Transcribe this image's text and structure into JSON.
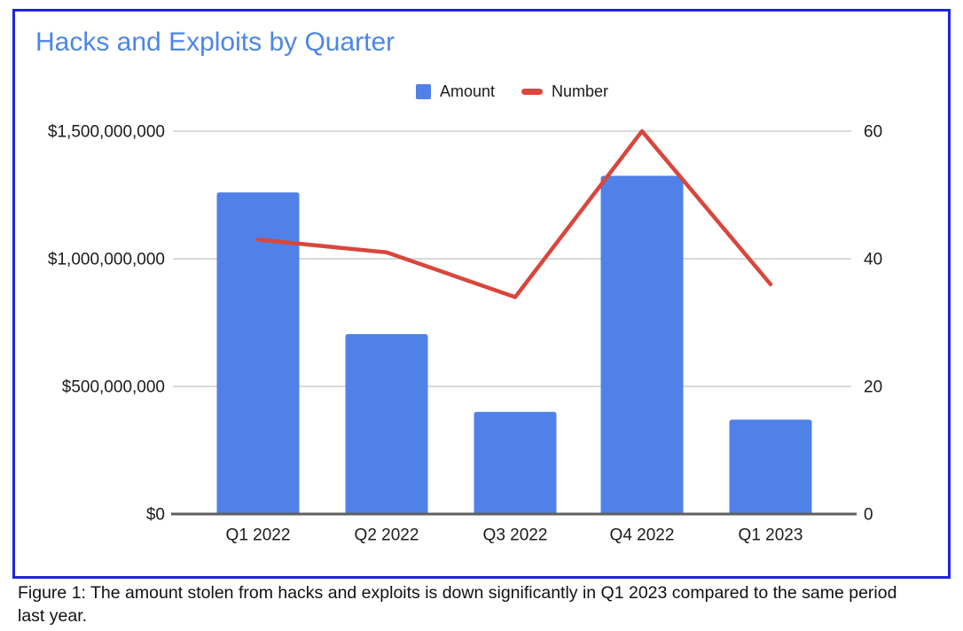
{
  "figure": {
    "title": "Hacks and Exploits by Quarter",
    "caption": "Figure 1: The amount stolen from hacks and exploits is down significantly in Q1 2023 compared to the same period last year."
  },
  "legend": [
    {
      "label": "Amount",
      "shape": "square",
      "color": "#4f81e8"
    },
    {
      "label": "Number",
      "shape": "dash",
      "color": "#d9463c"
    }
  ],
  "chart_data": {
    "type": "bar",
    "subtype": "bar+line combo",
    "title": "Hacks and Exploits by Quarter",
    "categories": [
      "Q1 2022",
      "Q2 2022",
      "Q3 2022",
      "Q4 2022",
      "Q1 2023"
    ],
    "series": [
      {
        "name": "Amount",
        "type": "bar",
        "axis": "left",
        "color": "#4f81e8",
        "values": [
          1260000000,
          705000000,
          400000000,
          1325000000,
          370000000
        ]
      },
      {
        "name": "Number",
        "type": "line",
        "axis": "right",
        "color": "#d9463c",
        "values": [
          43,
          41,
          34,
          60,
          36
        ]
      }
    ],
    "left_axis": {
      "ticks": [
        "$0",
        "$500,000,000",
        "$1,000,000,000",
        "$1,500,000,000"
      ],
      "tick_values": [
        0,
        500000000,
        1000000000,
        1500000000
      ],
      "min": 0,
      "max": 1500000000
    },
    "right_axis": {
      "ticks": [
        "0",
        "20",
        "40",
        "60"
      ],
      "tick_values": [
        0,
        20,
        40,
        60
      ],
      "min": 0,
      "max": 60
    },
    "grid": true,
    "legend_position": "top"
  },
  "colors": {
    "frame_border": "#2222e3",
    "title_text": "#4c86e8",
    "bar": "#4f81e8",
    "line": "#d9463c",
    "gridline": "#d9d9d9",
    "axis_line": "#5f5f5f",
    "tick_text": "#1b1b1b"
  }
}
